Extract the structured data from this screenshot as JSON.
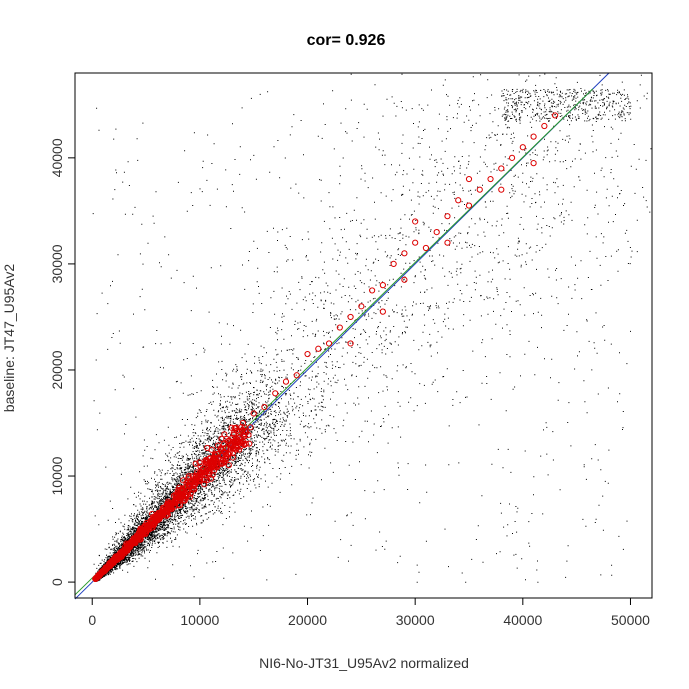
{
  "chart_data": {
    "type": "scatter",
    "title": "cor= 0.926",
    "xlabel": "NI6-No-JT31_U95Av2 normalized",
    "ylabel": "baseline: JT47_U95Av2",
    "xlim": [
      -1600,
      52000
    ],
    "ylim": [
      -1500,
      48000
    ],
    "x_ticks": [
      0,
      10000,
      20000,
      30000,
      40000,
      50000
    ],
    "y_ticks": [
      0,
      10000,
      20000,
      30000,
      40000
    ],
    "grid": false,
    "colors": {
      "points": "#000000",
      "highlight": "#dd0000",
      "identity_line": "#1f3fbf",
      "fit_line": "#2a9a2a"
    },
    "series": [
      {
        "role": "all_points",
        "description": "dense cloud of small black points; highest density along diagonal from 0 to ~15000, broad spread up to ~46000",
        "points_sample": [
          [
            500,
            800
          ],
          [
            1200,
            2100
          ],
          [
            2500,
            1800
          ],
          [
            3000,
            4200
          ],
          [
            4200,
            3500
          ],
          [
            5200,
            6000
          ],
          [
            6500,
            5800
          ],
          [
            7500,
            8500
          ],
          [
            9000,
            7800
          ],
          [
            11000,
            10500
          ],
          [
            13000,
            12000
          ],
          [
            15500,
            14500
          ],
          [
            18000,
            17500
          ],
          [
            22000,
            21000
          ],
          [
            26000,
            27000
          ],
          [
            31000,
            30500
          ],
          [
            36000,
            37000
          ],
          [
            41000,
            40000
          ],
          [
            44000,
            45500
          ],
          [
            49000,
            46000
          ]
        ]
      },
      {
        "role": "highlighted_points",
        "marker": "open-circle",
        "points": [
          [
            500,
            500
          ],
          [
            1500,
            1500
          ],
          [
            3000,
            3000
          ],
          [
            4500,
            4600
          ],
          [
            6000,
            6100
          ],
          [
            7000,
            7100
          ],
          [
            8000,
            8300
          ],
          [
            9000,
            9200
          ],
          [
            10000,
            10300
          ],
          [
            11000,
            11300
          ],
          [
            12000,
            12500
          ],
          [
            13000,
            13600
          ],
          [
            14000,
            15000
          ],
          [
            15000,
            15900
          ],
          [
            16000,
            16500
          ],
          [
            17000,
            17800
          ],
          [
            18000,
            18900
          ],
          [
            19000,
            19500
          ],
          [
            20000,
            21500
          ],
          [
            21000,
            22000
          ],
          [
            22000,
            22500
          ],
          [
            23000,
            24000
          ],
          [
            24000,
            25000
          ],
          [
            25000,
            26000
          ],
          [
            26000,
            27500
          ],
          [
            27000,
            28000
          ],
          [
            28000,
            30000
          ],
          [
            29000,
            31000
          ],
          [
            30000,
            32000
          ],
          [
            31000,
            31500
          ],
          [
            32000,
            33000
          ],
          [
            33000,
            34500
          ],
          [
            34000,
            36000
          ],
          [
            35000,
            35500
          ],
          [
            36000,
            37000
          ],
          [
            37000,
            38000
          ],
          [
            38000,
            39000
          ],
          [
            39000,
            40000
          ],
          [
            40000,
            41000
          ],
          [
            41000,
            42000
          ],
          [
            42000,
            43000
          ],
          [
            43000,
            44000
          ],
          [
            35000,
            38000
          ],
          [
            30000,
            34000
          ],
          [
            27000,
            25500
          ],
          [
            24000,
            22500
          ],
          [
            38000,
            37000
          ],
          [
            41000,
            39500
          ],
          [
            33000,
            32000
          ],
          [
            29000,
            28500
          ]
        ]
      }
    ],
    "lines": [
      {
        "role": "identity",
        "x": [
          -1600,
          48000
        ],
        "y": [
          -1600,
          48000
        ]
      },
      {
        "role": "fit",
        "x": [
          -1600,
          46500
        ],
        "y": [
          -1200,
          46500
        ]
      }
    ]
  }
}
